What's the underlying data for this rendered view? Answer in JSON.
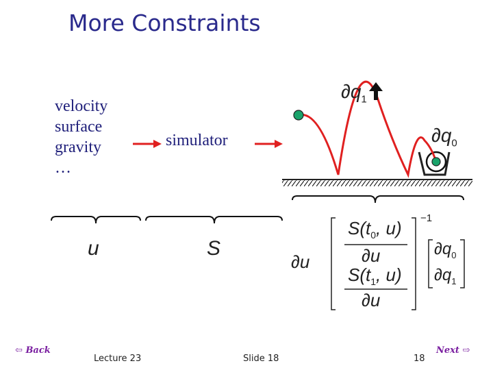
{
  "slide": {
    "title": "More Constraints",
    "inputs": [
      "velocity",
      "surface",
      "gravity",
      "…"
    ],
    "simulator_label": "simulator",
    "brace_labels": {
      "u": "u",
      "S": "S"
    },
    "delta_q1": "q",
    "delta_q1_sub": "1",
    "delta_q0": "q",
    "delta_q0_sub": "0",
    "equation": {
      "delta_u": "u",
      "inverse_exp": "1",
      "row1_num": "S(t",
      "row1_num_sub": "0",
      "row1_num_tail": ", u)",
      "row1_den": "u",
      "row2_num": "S(t",
      "row2_num_sub": "1",
      "row2_num_tail": ", u)",
      "row2_den": "u",
      "vec_q0": "q",
      "vec_q0_sub": "0",
      "vec_q1": "q",
      "vec_q1_sub": "1"
    }
  },
  "footer": {
    "lecture": "Lecture 23",
    "slide": "Slide 18",
    "page_number": "18",
    "back_label": "Back",
    "next_label": "Next"
  },
  "colors": {
    "title": "#2a2a8c",
    "trajectory": "#e02020",
    "ball": "#1aa36b",
    "nav": "#7a1fa0"
  },
  "icons": [
    "ball-icon",
    "arrow-icon",
    "target-ring-icon",
    "back-arrow-icon",
    "next-arrow-icon"
  ]
}
